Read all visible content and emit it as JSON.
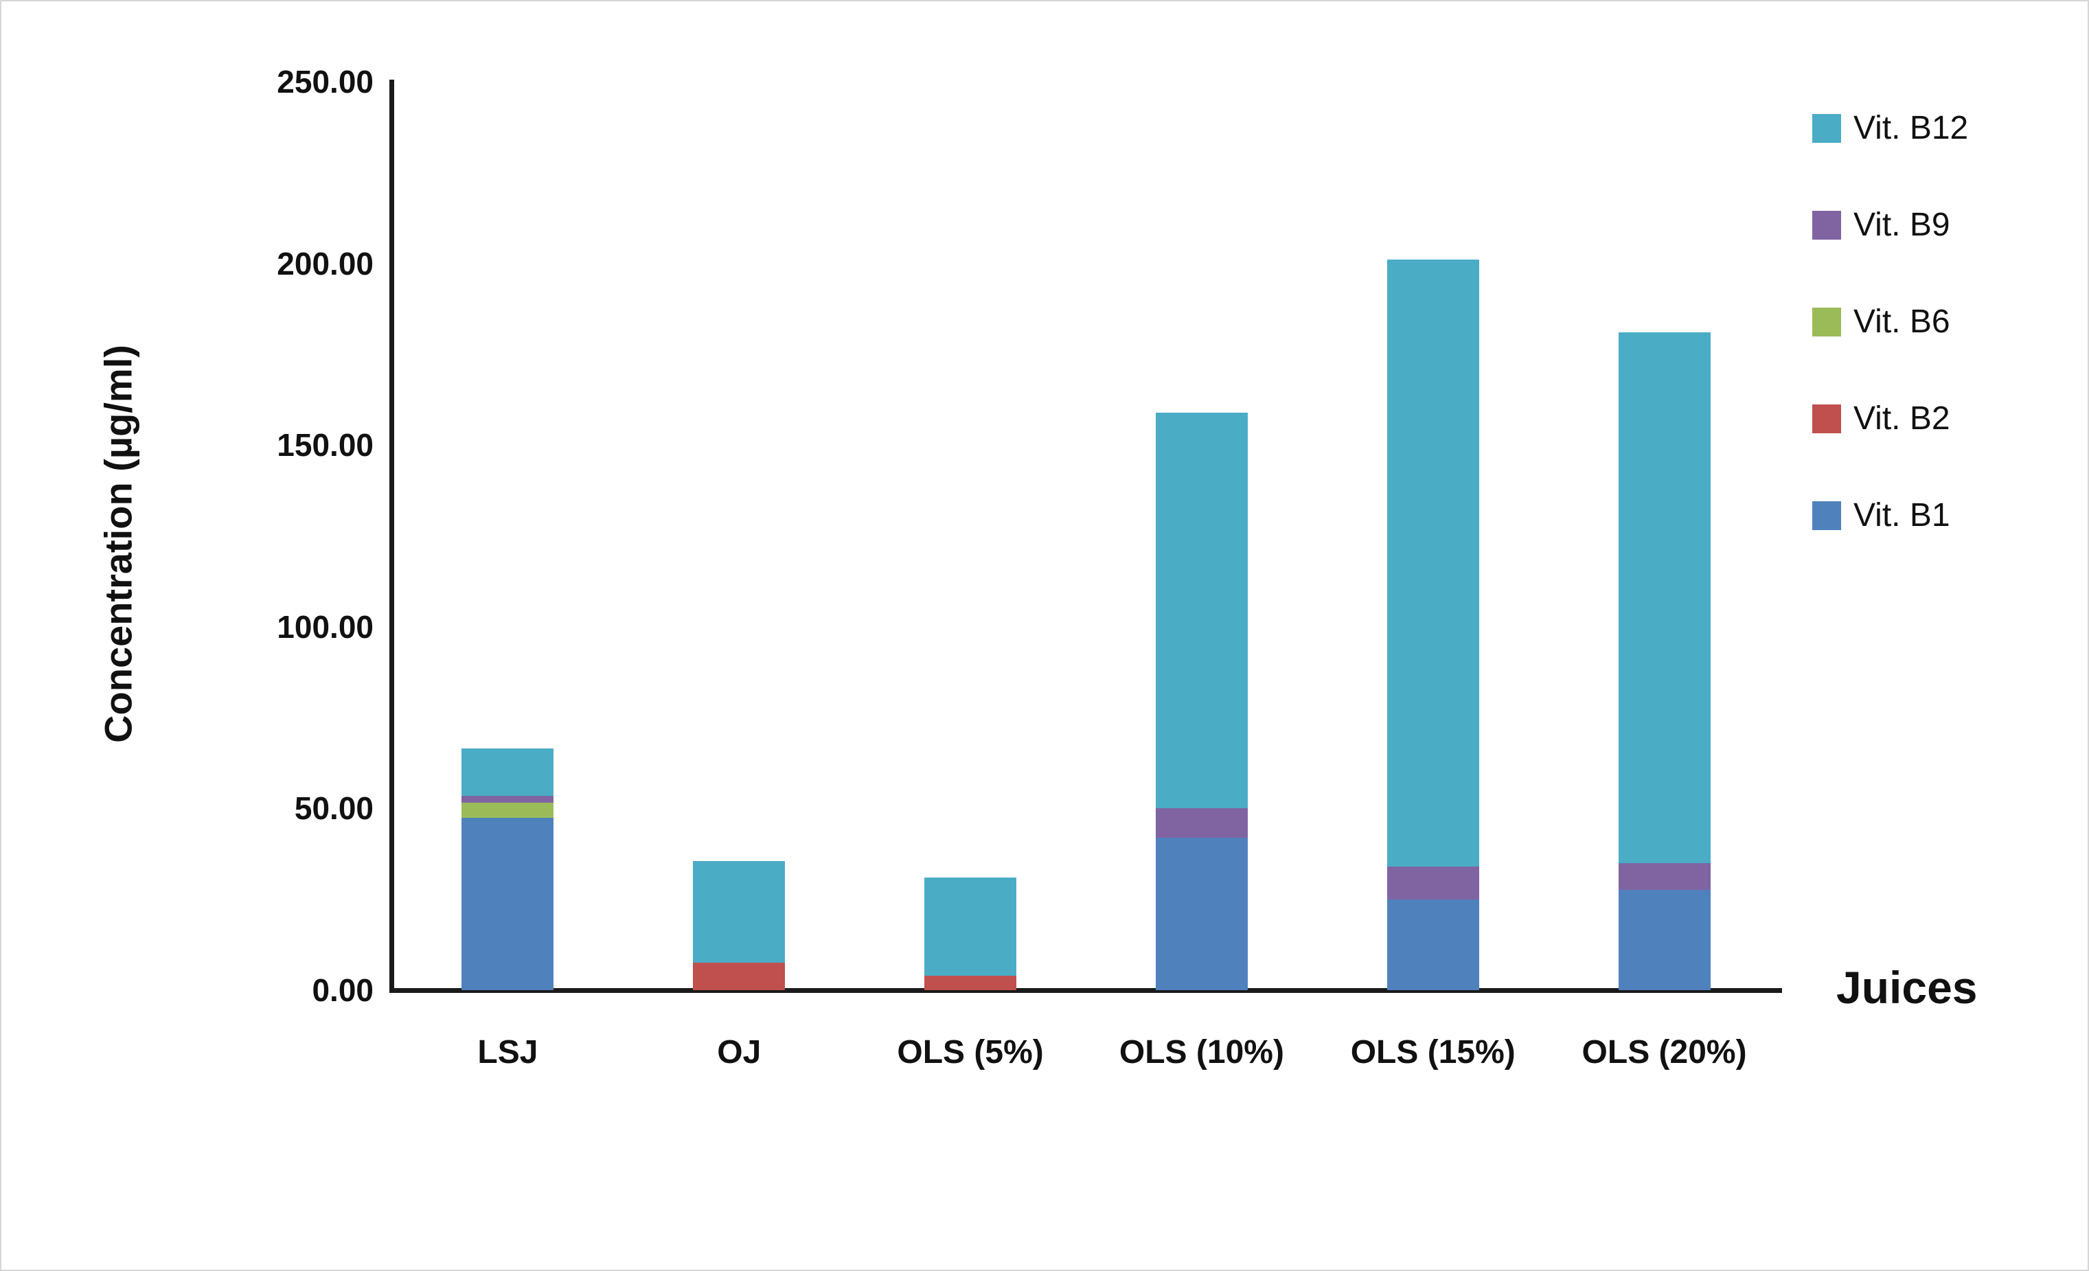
{
  "figure": {
    "y_ticks": [
      {
        "value": 0,
        "label": "0.00"
      },
      {
        "value": 50,
        "label": "50.00"
      },
      {
        "value": 100,
        "label": "100.00"
      },
      {
        "value": 150,
        "label": "150.00"
      },
      {
        "value": 200,
        "label": "200.00"
      },
      {
        "value": 250,
        "label": "250.00"
      }
    ]
  },
  "chart_data": {
    "type": "bar",
    "stacked": true,
    "title": "",
    "xlabel": "Juices",
    "ylabel": "Concentration (µg/ml)",
    "categories": [
      "LSJ",
      "OJ",
      "OLS (5%)",
      "OLS (10%)",
      "OLS (15%)",
      "OLS (20%)"
    ],
    "series": [
      {
        "name": "Vit. B1",
        "color": "#4F81BD",
        "values": [
          47.5,
          0,
          0,
          42.0,
          25.0,
          27.5
        ]
      },
      {
        "name": "Vit. B2",
        "color": "#C0504D",
        "values": [
          0,
          7.5,
          4.0,
          0,
          0,
          0
        ]
      },
      {
        "name": "Vit. B6",
        "color": "#9BBB59",
        "values": [
          4.0,
          0,
          0,
          0,
          0,
          0
        ]
      },
      {
        "name": "Vit. B9",
        "color": "#8064A2",
        "values": [
          2.0,
          0,
          0,
          8.0,
          9.0,
          7.5
        ]
      },
      {
        "name": "Vit. B12",
        "color": "#4BACC6",
        "values": [
          13.0,
          28.0,
          27.0,
          109.0,
          167.0,
          146.0
        ]
      }
    ],
    "totals": [
      66.5,
      35.5,
      31.0,
      159.0,
      201.0,
      181.0
    ],
    "ylim": [
      0,
      250
    ],
    "ytick_step": 50,
    "gridlines": false,
    "legend_position": "right-top",
    "legend_order": [
      "Vit. B12",
      "Vit. B9",
      "Vit. B6",
      "Vit. B2",
      "Vit. B1"
    ]
  }
}
